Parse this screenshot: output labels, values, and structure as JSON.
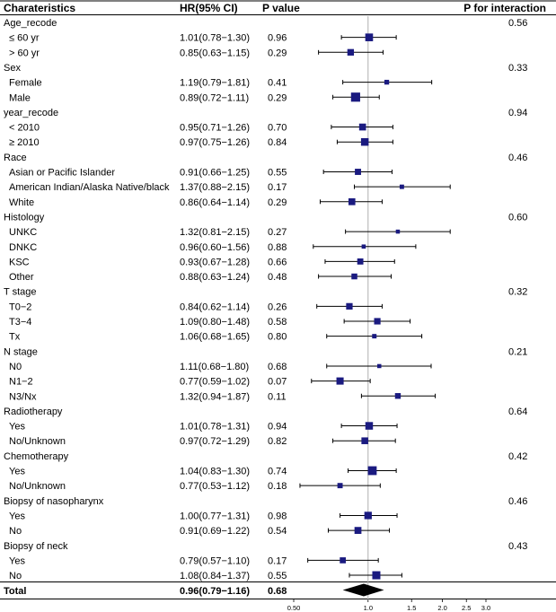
{
  "chart_data": {
    "type": "forest",
    "headers": {
      "characteristics": "Charateristics",
      "hr": "HR(95% CI)",
      "p": "P value",
      "p_interaction": "P for interaction"
    },
    "x_scale": "log",
    "xlim": [
      0.5,
      3.0
    ],
    "reference_line": 1.0,
    "x_ticks": [
      "0.50",
      "1.0",
      "1.5",
      "2.0",
      "2.5",
      "3.0"
    ],
    "rows": [
      {
        "kind": "group",
        "label": "Age_recode",
        "p_interaction": "0.56"
      },
      {
        "kind": "item",
        "label": "≤ 60 yr",
        "ci_text": "1.01(0.78−1.30)",
        "p": "0.96",
        "hr": 1.01,
        "lo": 0.78,
        "hi": 1.3
      },
      {
        "kind": "item",
        "label": "> 60 yr",
        "ci_text": "0.85(0.63−1.15)",
        "p": "0.29",
        "hr": 0.85,
        "lo": 0.63,
        "hi": 1.15
      },
      {
        "kind": "group",
        "label": "Sex",
        "p_interaction": "0.33"
      },
      {
        "kind": "item",
        "label": "Female",
        "ci_text": "1.19(0.79−1.81)",
        "p": "0.41",
        "hr": 1.19,
        "lo": 0.79,
        "hi": 1.81
      },
      {
        "kind": "item",
        "label": "Male",
        "ci_text": "0.89(0.72−1.11)",
        "p": "0.29",
        "hr": 0.89,
        "lo": 0.72,
        "hi": 1.11
      },
      {
        "kind": "group",
        "label": "year_recode",
        "p_interaction": "0.94"
      },
      {
        "kind": "item",
        "label": "< 2010",
        "ci_text": "0.95(0.71−1.26)",
        "p": "0.70",
        "hr": 0.95,
        "lo": 0.71,
        "hi": 1.26
      },
      {
        "kind": "item",
        "label": "≥ 2010",
        "ci_text": "0.97(0.75−1.26)",
        "p": "0.84",
        "hr": 0.97,
        "lo": 0.75,
        "hi": 1.26
      },
      {
        "kind": "group",
        "label": "Race",
        "p_interaction": "0.46"
      },
      {
        "kind": "item",
        "label": "Asian or Pacific Islander",
        "ci_text": "0.91(0.66−1.25)",
        "p": "0.55",
        "hr": 0.91,
        "lo": 0.66,
        "hi": 1.25
      },
      {
        "kind": "item",
        "label": "American Indian/Alaska Native/black",
        "ci_text": "1.37(0.88−2.15)",
        "p": "0.17",
        "hr": 1.37,
        "lo": 0.88,
        "hi": 2.15
      },
      {
        "kind": "item",
        "label": "White",
        "ci_text": "0.86(0.64−1.14)",
        "p": "0.29",
        "hr": 0.86,
        "lo": 0.64,
        "hi": 1.14
      },
      {
        "kind": "group",
        "label": "Histology",
        "p_interaction": "0.60"
      },
      {
        "kind": "item",
        "label": "UNKC",
        "ci_text": "1.32(0.81−2.15)",
        "p": "0.27",
        "hr": 1.32,
        "lo": 0.81,
        "hi": 2.15
      },
      {
        "kind": "item",
        "label": "DNKC",
        "ci_text": "0.96(0.60−1.56)",
        "p": "0.88",
        "hr": 0.96,
        "lo": 0.6,
        "hi": 1.56
      },
      {
        "kind": "item",
        "label": "KSC",
        "ci_text": "0.93(0.67−1.28)",
        "p": "0.66",
        "hr": 0.93,
        "lo": 0.67,
        "hi": 1.28
      },
      {
        "kind": "item",
        "label": "Other",
        "ci_text": "0.88(0.63−1.24)",
        "p": "0.48",
        "hr": 0.88,
        "lo": 0.63,
        "hi": 1.24
      },
      {
        "kind": "group",
        "label": "T stage",
        "p_interaction": "0.32"
      },
      {
        "kind": "item",
        "label": "T0−2",
        "ci_text": "0.84(0.62−1.14)",
        "p": "0.26",
        "hr": 0.84,
        "lo": 0.62,
        "hi": 1.14
      },
      {
        "kind": "item",
        "label": "T3−4",
        "ci_text": "1.09(0.80−1.48)",
        "p": "0.58",
        "hr": 1.09,
        "lo": 0.8,
        "hi": 1.48
      },
      {
        "kind": "item",
        "label": "Tx",
        "ci_text": "1.06(0.68−1.65)",
        "p": "0.80",
        "hr": 1.06,
        "lo": 0.68,
        "hi": 1.65
      },
      {
        "kind": "group",
        "label": "N stage",
        "p_interaction": "0.21"
      },
      {
        "kind": "item",
        "label": "N0",
        "ci_text": "1.11(0.68−1.80)",
        "p": "0.68",
        "hr": 1.11,
        "lo": 0.68,
        "hi": 1.8
      },
      {
        "kind": "item",
        "label": "N1−2",
        "ci_text": "0.77(0.59−1.02)",
        "p": "0.07",
        "hr": 0.77,
        "lo": 0.59,
        "hi": 1.02
      },
      {
        "kind": "item",
        "label": "N3/Nx",
        "ci_text": "1.32(0.94−1.87)",
        "p": "0.11",
        "hr": 1.32,
        "lo": 0.94,
        "hi": 1.87
      },
      {
        "kind": "group",
        "label": "Radiotherapy",
        "p_interaction": "0.64"
      },
      {
        "kind": "item",
        "label": "Yes",
        "ci_text": "1.01(0.78−1.31)",
        "p": "0.94",
        "hr": 1.01,
        "lo": 0.78,
        "hi": 1.31
      },
      {
        "kind": "item",
        "label": "No/Unknown",
        "ci_text": "0.97(0.72−1.29)",
        "p": "0.82",
        "hr": 0.97,
        "lo": 0.72,
        "hi": 1.29
      },
      {
        "kind": "group",
        "label": "Chemotherapy",
        "p_interaction": "0.42"
      },
      {
        "kind": "item",
        "label": "Yes",
        "ci_text": "1.04(0.83−1.30)",
        "p": "0.74",
        "hr": 1.04,
        "lo": 0.83,
        "hi": 1.3
      },
      {
        "kind": "item",
        "label": "No/Unknown",
        "ci_text": "0.77(0.53−1.12)",
        "p": "0.18",
        "hr": 0.77,
        "lo": 0.53,
        "hi": 1.12
      },
      {
        "kind": "group",
        "label": "Biopsy of nasopharynx",
        "p_interaction": "0.46"
      },
      {
        "kind": "item",
        "label": "Yes",
        "ci_text": "1.00(0.77−1.31)",
        "p": "0.98",
        "hr": 1.0,
        "lo": 0.77,
        "hi": 1.31
      },
      {
        "kind": "item",
        "label": "No",
        "ci_text": "0.91(0.69−1.22)",
        "p": "0.54",
        "hr": 0.91,
        "lo": 0.69,
        "hi": 1.22
      },
      {
        "kind": "group",
        "label": "Biopsy of neck",
        "p_interaction": "0.43"
      },
      {
        "kind": "item",
        "label": "Yes",
        "ci_text": "0.79(0.57−1.10)",
        "p": "0.17",
        "hr": 0.79,
        "lo": 0.57,
        "hi": 1.1
      },
      {
        "kind": "item",
        "label": "No",
        "ci_text": "1.08(0.84−1.37)",
        "p": "0.55",
        "hr": 1.08,
        "lo": 0.84,
        "hi": 1.37
      }
    ],
    "total": {
      "label": "Total",
      "ci_text": "0.96(0.79−1.16)",
      "p": "0.68",
      "hr": 0.96,
      "lo": 0.79,
      "hi": 1.16
    },
    "colors": {
      "marker": "#1a1a80",
      "line": "#000000",
      "reference": "#b0b0b0",
      "diamond": "#000000"
    }
  }
}
